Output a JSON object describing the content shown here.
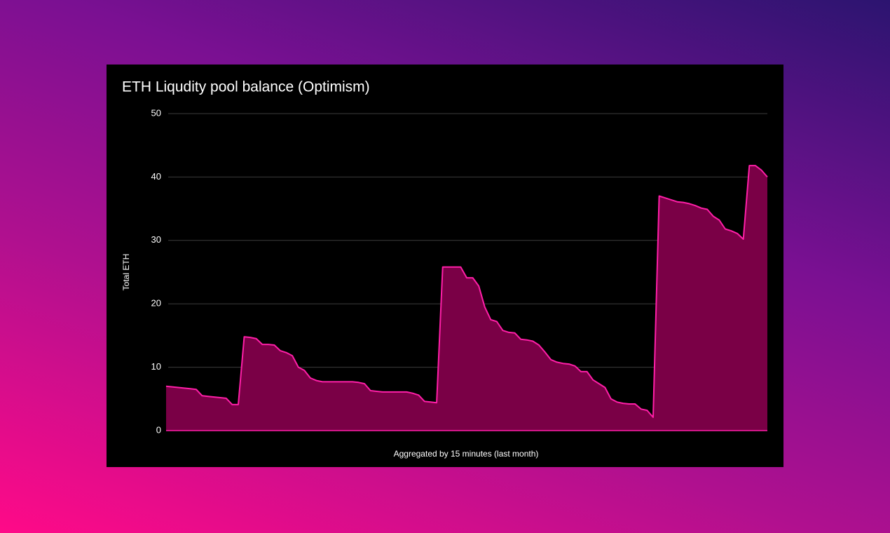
{
  "chart_data": {
    "type": "area",
    "title": "ETH Liqudity pool balance (Optimism)",
    "ylabel": "Total ETH",
    "xlabel": "Aggregated by 15 minutes (last month)",
    "ylim": [
      0,
      50
    ],
    "yticks": [
      0,
      10,
      20,
      30,
      40,
      50
    ],
    "grid": true,
    "color": "#ff1fa8",
    "fill_color": "#7a0046",
    "values": [
      7.0,
      6.9,
      6.8,
      6.7,
      6.6,
      6.5,
      5.5,
      5.4,
      5.3,
      5.2,
      5.1,
      4.1,
      4.1,
      14.8,
      14.7,
      14.5,
      13.6,
      13.6,
      13.5,
      12.6,
      12.3,
      11.8,
      10.0,
      9.5,
      8.3,
      7.9,
      7.7,
      7.7,
      7.7,
      7.7,
      7.7,
      7.7,
      7.6,
      7.4,
      6.3,
      6.2,
      6.1,
      6.1,
      6.1,
      6.1,
      6.1,
      5.9,
      5.6,
      4.6,
      4.5,
      4.4,
      25.8,
      25.8,
      25.8,
      25.8,
      24.1,
      24.1,
      22.8,
      19.5,
      17.5,
      17.2,
      15.8,
      15.5,
      15.4,
      14.4,
      14.3,
      14.1,
      13.5,
      12.4,
      11.2,
      10.8,
      10.6,
      10.5,
      10.2,
      9.3,
      9.3,
      8.0,
      7.4,
      6.8,
      5.0,
      4.5,
      4.3,
      4.2,
      4.2,
      3.4,
      3.2,
      2.1,
      37.0,
      36.7,
      36.4,
      36.1,
      36.0,
      35.8,
      35.5,
      35.1,
      34.9,
      33.8,
      33.2,
      31.8,
      31.5,
      31.1,
      30.2,
      41.8,
      41.8,
      41.1,
      40.0
    ]
  }
}
